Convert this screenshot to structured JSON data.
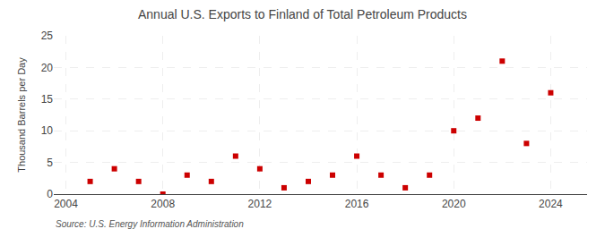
{
  "chart_data": {
    "type": "scatter",
    "title": "Annual U.S. Exports to Finland of Total Petroleum Products",
    "ylabel": "Thousand Barrels per Day",
    "annotations": [
      "Source: U.S. Energy Information Administration"
    ],
    "x": [
      2005,
      2006,
      2007,
      2008,
      2009,
      2010,
      2011,
      2012,
      2013,
      2014,
      2015,
      2016,
      2017,
      2018,
      2019,
      2020,
      2021,
      2022,
      2023,
      2024
    ],
    "values": [
      2.0,
      4.0,
      2.0,
      0.0,
      3.0,
      2.0,
      6.0,
      4.0,
      1.0,
      2.0,
      3.0,
      6.0,
      3.0,
      1.0,
      3.0,
      10.0,
      12.0,
      21.0,
      8.0,
      16.0
    ],
    "color": "#cc0000",
    "marker": "square",
    "xlim": [
      2003.5,
      2025.5
    ],
    "xticks": [
      2004,
      2008,
      2012,
      2016,
      2020,
      2024
    ],
    "ylim": [
      0,
      25
    ],
    "yticks": [
      0,
      5,
      10,
      15,
      20,
      25
    ],
    "grid": true
  }
}
